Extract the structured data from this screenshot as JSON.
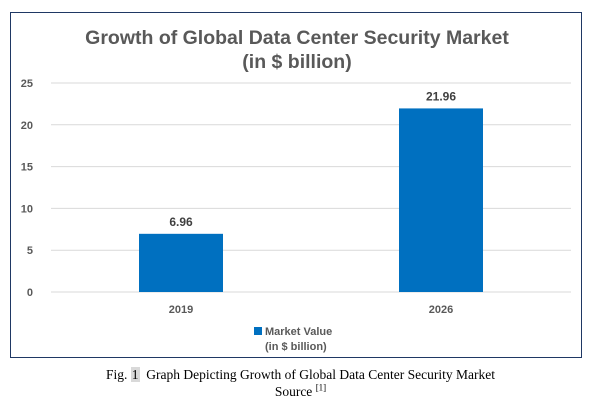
{
  "chart_data": {
    "type": "bar",
    "title_line1": "Growth of Global Data Center Security Market",
    "title_line2": "(in $ billion)",
    "categories": [
      "2019",
      "2026"
    ],
    "series": [
      {
        "name": "Market Value (in $ billion)",
        "name_line1": "Market Value",
        "name_line2": "(in $ billion)",
        "values": [
          6.96,
          21.96
        ],
        "value_labels": [
          "6.96",
          "21.96"
        ],
        "color": "#0070c0"
      }
    ],
    "ylim": [
      0,
      25
    ],
    "yticks": [
      "0",
      "5",
      "10",
      "15",
      "20",
      "25"
    ],
    "xlabel": "",
    "ylabel": "",
    "grid": true,
    "legend_position": "bottom"
  },
  "caption": {
    "prefix": "Fig.",
    "number": "1",
    "text": "Graph Depicting Growth of Global Data Center Security Market",
    "line2": "Source",
    "reference": "[1]"
  },
  "colors": {
    "bar": "#0070c0",
    "title": "#595959",
    "grid": "#d9d9d9",
    "frame": "#1f3864"
  }
}
